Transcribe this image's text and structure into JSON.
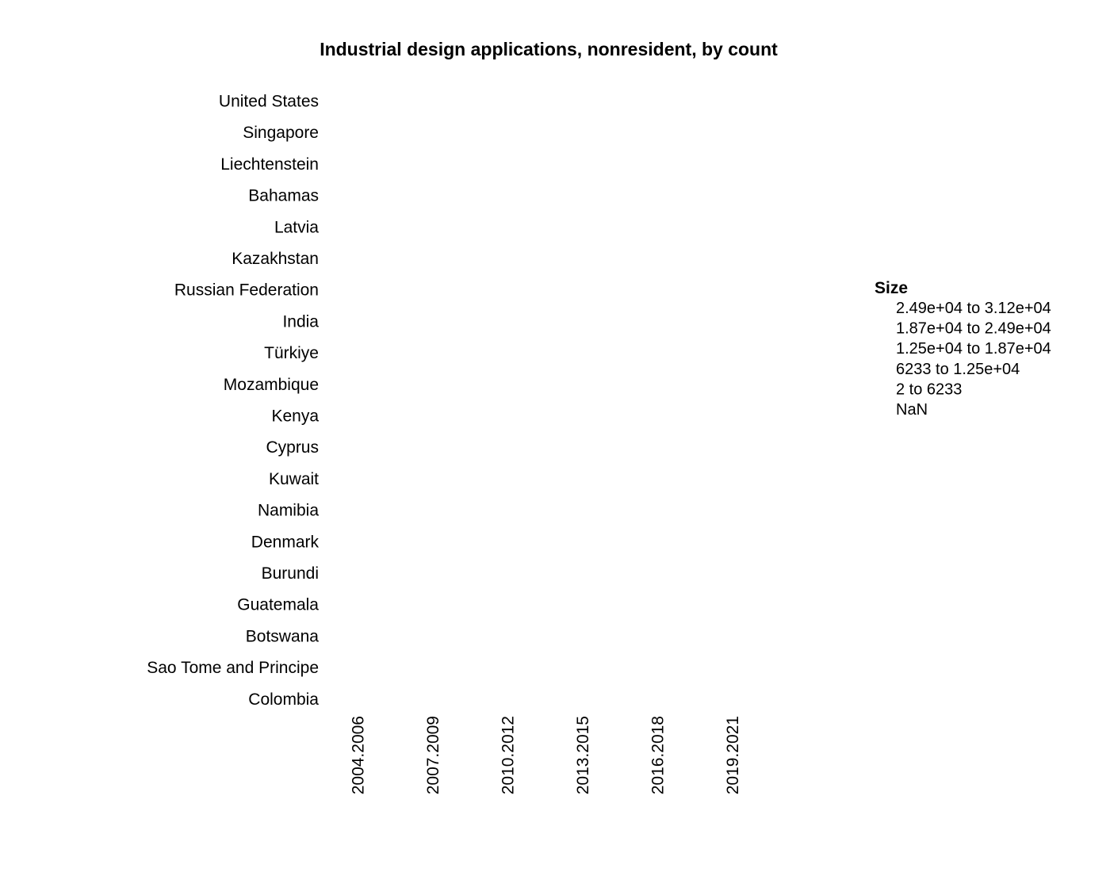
{
  "chart_data": {
    "type": "scatter",
    "title": "Industrial design applications, nonresident, by count",
    "xlabel": "",
    "ylabel": "",
    "categories_x": [
      "2004.2006",
      "2007.2009",
      "2010.2012",
      "2013.2015",
      "2016.2018",
      "2019.2021"
    ],
    "categories_y": [
      "United States",
      "Singapore",
      "Liechtenstein",
      "Bahamas",
      "Latvia",
      "Kazakhstan",
      "Russian Federation",
      "India",
      "Türkiye",
      "Mozambique",
      "Kenya",
      "Cyprus",
      "Kuwait",
      "Namibia",
      "Denmark",
      "Burundi",
      "Guatemala",
      "Botswana",
      "Sao Tome and Principe",
      "Colombia"
    ],
    "series": [],
    "grid": false,
    "legend": {
      "title": "Size",
      "placement": "right",
      "items": [
        "2.49e+04  to  3.12e+04",
        "1.87e+04  to  2.49e+04",
        "1.25e+04  to  1.87e+04",
        "6233  to  1.25e+04",
        "2  to  6233",
        "NaN"
      ]
    }
  }
}
